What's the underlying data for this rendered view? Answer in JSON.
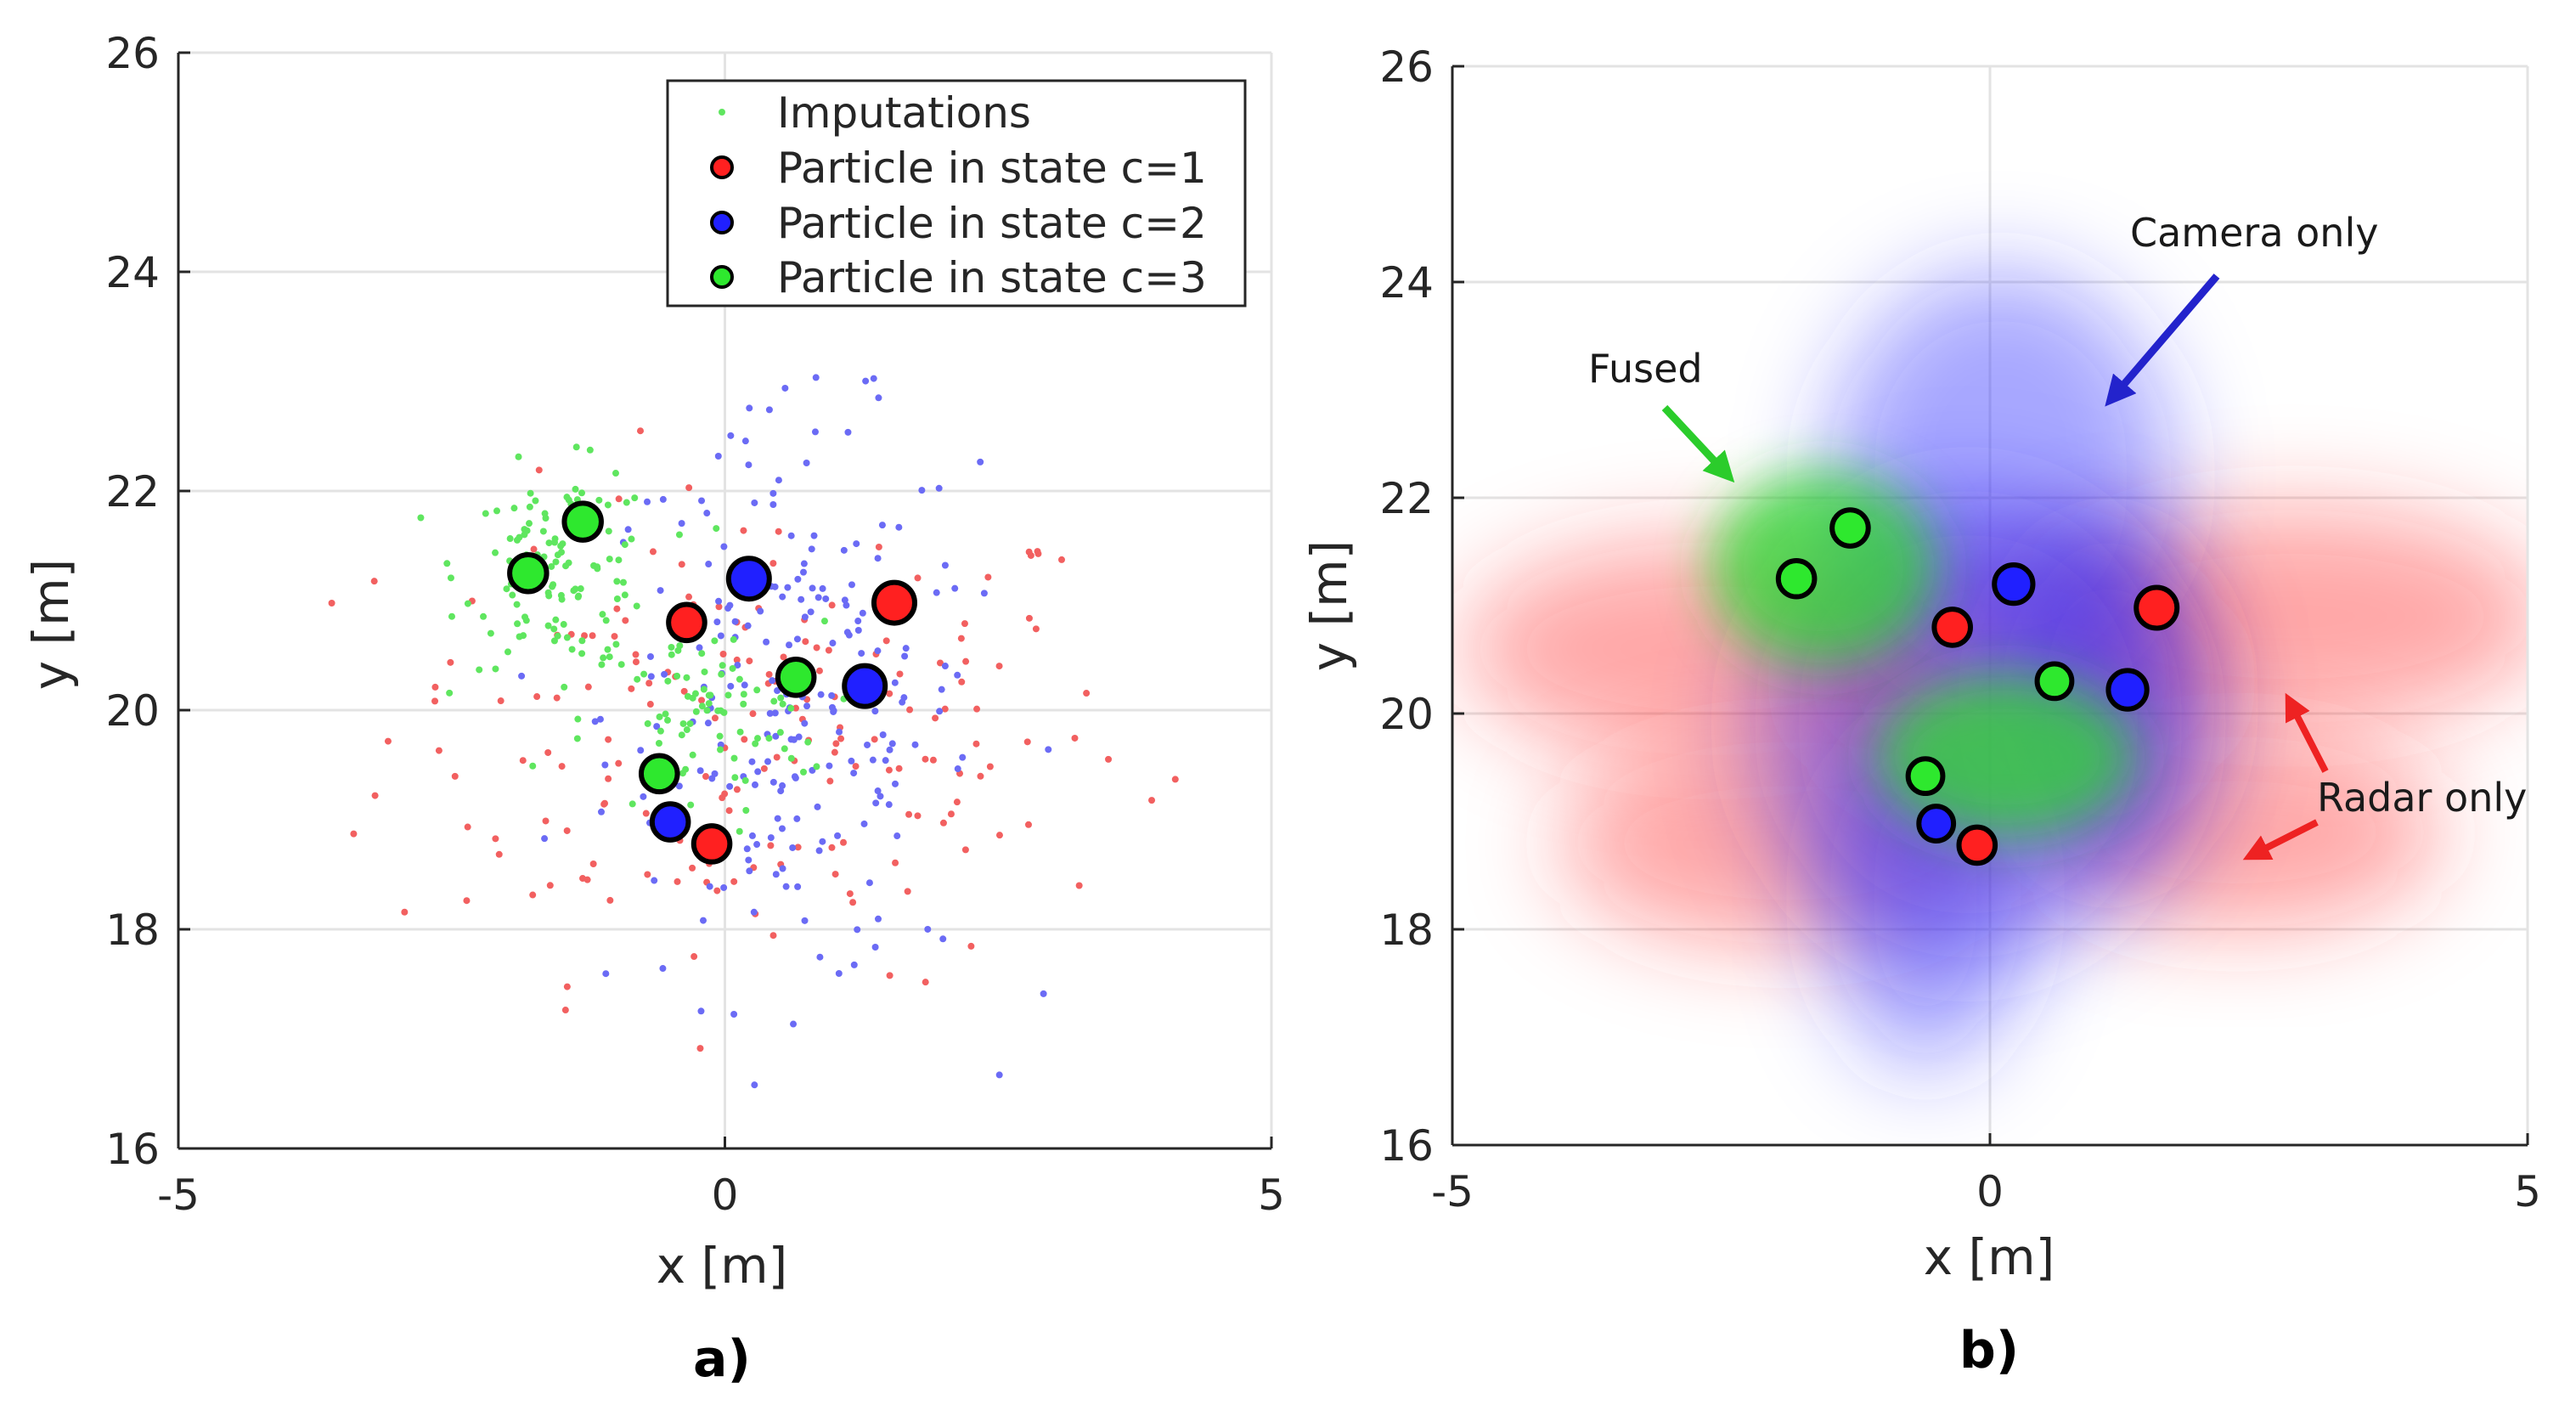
{
  "panels": [
    {
      "label": "a)",
      "xlabel": "x [m]",
      "ylabel": "y [m]"
    },
    {
      "label": "b)",
      "xlabel": "x [m]",
      "ylabel": "y [m]"
    }
  ],
  "legend": [
    {
      "label": "Imputations",
      "marker": "dot",
      "color": "#5fe65f"
    },
    {
      "label": "Particle in state c=1",
      "marker": "circle",
      "color": "#ff2020"
    },
    {
      "label": "Particle in state c=2",
      "marker": "circle",
      "color": "#2020ff"
    },
    {
      "label": "Particle in state c=3",
      "marker": "circle",
      "color": "#2ee82e"
    }
  ],
  "annotations": {
    "camera": "Camera only",
    "fused": "Fused",
    "radar": "Radar only"
  },
  "colors": {
    "red": "#ff2020",
    "blue": "#2020ff",
    "green": "#2ee82e",
    "grid": "#e3e3e3"
  },
  "chart_data": [
    {
      "type": "scatter",
      "title": "",
      "xlabel": "x [m]",
      "ylabel": "y [m]",
      "xlim": [
        -5,
        5
      ],
      "ylim": [
        16,
        26
      ],
      "xticks": [
        -5,
        0,
        5
      ],
      "yticks": [
        16,
        18,
        20,
        22,
        24,
        26
      ],
      "grid": true,
      "legend_position": "top-right",
      "particles": [
        {
          "state": 1,
          "x": -0.35,
          "y": 20.8,
          "weight": 0.7
        },
        {
          "state": 1,
          "x": 1.55,
          "y": 20.98,
          "weight": 1.0
        },
        {
          "state": 1,
          "x": -0.12,
          "y": 18.78,
          "weight": 0.7
        },
        {
          "state": 2,
          "x": 0.22,
          "y": 21.2,
          "weight": 1.0
        },
        {
          "state": 2,
          "x": 1.28,
          "y": 20.22,
          "weight": 1.0
        },
        {
          "state": 2,
          "x": -0.5,
          "y": 18.98,
          "weight": 0.7
        },
        {
          "state": 3,
          "x": -1.8,
          "y": 21.25,
          "weight": 0.75
        },
        {
          "state": 3,
          "x": -1.3,
          "y": 21.72,
          "weight": 0.75
        },
        {
          "state": 3,
          "x": 0.65,
          "y": 20.3,
          "weight": 0.7
        },
        {
          "state": 3,
          "x": -0.6,
          "y": 19.42,
          "weight": 0.7
        }
      ],
      "imputation_clouds": [
        {
          "state": 1,
          "cx": 0.3,
          "cy": 19.8,
          "sx": 1.7,
          "sy": 1.1,
          "n": 190
        },
        {
          "state": 2,
          "cx": 0.6,
          "cy": 20.0,
          "sx": 0.85,
          "sy": 1.3,
          "n": 230
        },
        {
          "state": 3,
          "cx": -1.5,
          "cy": 21.3,
          "sx": 0.45,
          "sy": 0.45,
          "n": 120
        },
        {
          "state": 3,
          "cx": -0.2,
          "cy": 19.9,
          "sx": 0.55,
          "sy": 0.45,
          "n": 80
        }
      ]
    },
    {
      "type": "density",
      "title": "",
      "xlabel": "x [m]",
      "ylabel": "y [m]",
      "xlim": [
        -5,
        5
      ],
      "ylim": [
        16,
        26
      ],
      "xticks": [
        -5,
        0,
        5
      ],
      "yticks": [
        16,
        18,
        20,
        22,
        24,
        26
      ],
      "grid": true,
      "particles": [
        {
          "state": 1,
          "x": -0.35,
          "y": 20.8,
          "weight": 0.7
        },
        {
          "state": 1,
          "x": 1.55,
          "y": 20.98,
          "weight": 1.0
        },
        {
          "state": 1,
          "x": -0.12,
          "y": 18.78,
          "weight": 0.7
        },
        {
          "state": 2,
          "x": 0.22,
          "y": 21.2,
          "weight": 0.85
        },
        {
          "state": 2,
          "x": 1.28,
          "y": 20.22,
          "weight": 0.85
        },
        {
          "state": 2,
          "x": -0.5,
          "y": 18.98,
          "weight": 0.6
        },
        {
          "state": 3,
          "x": -1.8,
          "y": 21.25,
          "weight": 0.7
        },
        {
          "state": 3,
          "x": -1.3,
          "y": 21.72,
          "weight": 0.7
        },
        {
          "state": 3,
          "x": 0.6,
          "y": 20.3,
          "weight": 0.6
        },
        {
          "state": 3,
          "x": -0.6,
          "y": 19.42,
          "weight": 0.6
        }
      ],
      "regions": [
        {
          "type": "radar",
          "cx": 2.8,
          "cy": 20.9,
          "rx": 2.4,
          "ry": 1.0
        },
        {
          "type": "radar",
          "cx": -2.6,
          "cy": 20.6,
          "rx": 2.3,
          "ry": 1.0
        },
        {
          "type": "radar",
          "cx": -1.9,
          "cy": 18.8,
          "rx": 2.1,
          "ry": 0.95
        },
        {
          "type": "radar",
          "cx": 2.3,
          "cy": 18.9,
          "rx": 1.9,
          "ry": 0.9
        },
        {
          "type": "radar",
          "cx": 0.2,
          "cy": 20.3,
          "rx": 1.9,
          "ry": 1.3
        },
        {
          "type": "camera",
          "cx": 0.1,
          "cy": 22.2,
          "rx": 1.6,
          "ry": 1.9
        },
        {
          "type": "camera",
          "cx": 1.1,
          "cy": 20.1,
          "rx": 1.0,
          "ry": 1.6
        },
        {
          "type": "camera",
          "cx": -0.6,
          "cy": 18.3,
          "rx": 0.9,
          "ry": 1.6
        },
        {
          "type": "camera",
          "cx": -0.2,
          "cy": 19.9,
          "rx": 2.0,
          "ry": 2.2
        },
        {
          "type": "fused",
          "cx": -1.55,
          "cy": 21.35,
          "rx": 1.05,
          "ry": 0.9
        },
        {
          "type": "fused",
          "cx": 0.15,
          "cy": 19.6,
          "rx": 1.2,
          "ry": 0.75
        }
      ]
    }
  ]
}
